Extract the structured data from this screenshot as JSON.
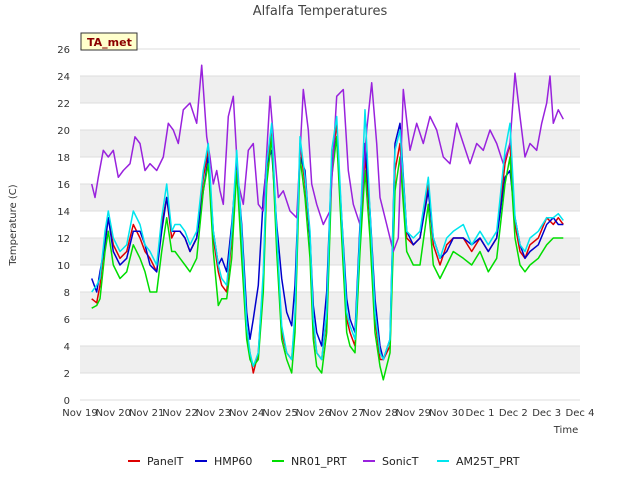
{
  "chart_data": {
    "type": "line",
    "title": "Alfalfa Temperatures",
    "xlabel": "Time",
    "ylabel": "Temperature (C)",
    "badge": "TA_met",
    "ylim": [
      0,
      26
    ],
    "yticks": [
      0,
      2,
      4,
      6,
      8,
      10,
      12,
      14,
      16,
      18,
      20,
      22,
      24,
      26
    ],
    "xlim": [
      0,
      15
    ],
    "xticks": [
      0,
      1,
      2,
      3,
      4,
      5,
      6,
      7,
      8,
      9,
      10,
      11,
      12,
      13,
      14,
      15
    ],
    "xtick_labels": [
      "Nov 19",
      "Nov 20",
      "Nov 21",
      "Nov 22",
      "Nov 23",
      "Nov 24",
      "Nov 25",
      "Nov 26",
      "Nov 27",
      "Nov 28",
      "Nov 29",
      "Nov 30",
      "Dec 1",
      "Dec 2",
      "Dec 3",
      "Dec 4"
    ],
    "grid": "horizontal bands",
    "legend_position": "bottom",
    "series": [
      {
        "name": "PanelT",
        "color": "#dd0000",
        "x": [
          0.35,
          0.5,
          0.6,
          0.75,
          0.85,
          1.0,
          1.2,
          1.4,
          1.6,
          1.8,
          1.95,
          2.1,
          2.3,
          2.45,
          2.6,
          2.75,
          2.85,
          3.0,
          3.15,
          3.3,
          3.5,
          3.7,
          3.85,
          4.0,
          4.15,
          4.25,
          4.4,
          4.55,
          4.7,
          4.85,
          5.0,
          5.1,
          5.2,
          5.35,
          5.5,
          5.6,
          5.75,
          5.9,
          6.05,
          6.2,
          6.35,
          6.45,
          6.6,
          6.75,
          6.9,
          7.0,
          7.1,
          7.25,
          7.4,
          7.55,
          7.7,
          7.85,
          8.0,
          8.1,
          8.25,
          8.4,
          8.55,
          8.7,
          8.85,
          9.0,
          9.1,
          9.3,
          9.45,
          9.6,
          9.8,
          10.0,
          10.2,
          10.45,
          10.6,
          10.8,
          11.0,
          11.2,
          11.5,
          11.75,
          12.0,
          12.25,
          12.5,
          12.75,
          12.9,
          13.05,
          13.2,
          13.35,
          13.5,
          13.75,
          14.0,
          14.2,
          14.35,
          14.5
        ],
        "y": [
          7.5,
          7.2,
          8.5,
          12.0,
          13.5,
          11.5,
          10.5,
          11.0,
          13.0,
          12.0,
          11.0,
          10.5,
          9.5,
          13.0,
          15.0,
          12.0,
          12.5,
          12.5,
          12.0,
          11.0,
          12.0,
          16.5,
          18.5,
          12.0,
          9.5,
          8.5,
          8.0,
          12.0,
          18.0,
          12.0,
          5.0,
          3.5,
          2.0,
          3.5,
          9.0,
          17.0,
          20.0,
          12.0,
          5.0,
          3.5,
          3.0,
          6.0,
          19.0,
          16.0,
          12.0,
          5.5,
          3.5,
          3.0,
          6.0,
          17.5,
          20.5,
          13.0,
          6.0,
          5.0,
          4.0,
          12.0,
          18.0,
          13.5,
          6.0,
          3.0,
          3.0,
          4.0,
          17.0,
          19.0,
          12.0,
          11.5,
          12.0,
          16.0,
          11.5,
          10.0,
          11.5,
          12.0,
          12.0,
          11.0,
          12.0,
          11.0,
          12.0,
          17.5,
          19.0,
          13.0,
          11.0,
          10.5,
          11.5,
          12.0,
          13.5,
          13.0,
          13.5,
          13.0
        ]
      },
      {
        "name": "HMP60",
        "color": "#0000cc",
        "x": [
          0.35,
          0.5,
          0.6,
          0.75,
          0.85,
          1.0,
          1.2,
          1.4,
          1.6,
          1.8,
          1.95,
          2.1,
          2.3,
          2.45,
          2.6,
          2.75,
          2.85,
          3.0,
          3.15,
          3.3,
          3.5,
          3.7,
          3.85,
          4.0,
          4.15,
          4.25,
          4.4,
          4.55,
          4.7,
          4.85,
          5.0,
          5.1,
          5.2,
          5.35,
          5.5,
          5.6,
          5.75,
          5.9,
          6.05,
          6.2,
          6.35,
          6.45,
          6.6,
          6.75,
          6.9,
          7.0,
          7.1,
          7.25,
          7.4,
          7.55,
          7.7,
          7.85,
          8.0,
          8.1,
          8.25,
          8.4,
          8.55,
          8.7,
          8.85,
          9.0,
          9.1,
          9.3,
          9.45,
          9.6,
          9.8,
          10.0,
          10.2,
          10.45,
          10.6,
          10.8,
          11.0,
          11.2,
          11.5,
          11.75,
          12.0,
          12.25,
          12.5,
          12.75,
          12.9,
          13.05,
          13.2,
          13.35,
          13.5,
          13.75,
          14.0,
          14.2,
          14.35,
          14.5
        ],
        "y": [
          9.0,
          8.0,
          9.5,
          11.5,
          13.5,
          11.0,
          10.0,
          10.5,
          12.5,
          12.5,
          11.5,
          10.0,
          9.5,
          12.5,
          15.0,
          12.5,
          12.5,
          12.5,
          12.0,
          11.0,
          12.0,
          15.5,
          18.0,
          12.5,
          10.0,
          10.5,
          9.5,
          13.0,
          17.5,
          13.0,
          6.5,
          4.5,
          6.0,
          8.5,
          15.0,
          17.5,
          18.5,
          13.0,
          9.0,
          6.5,
          5.5,
          8.5,
          18.0,
          17.0,
          12.0,
          7.0,
          5.0,
          4.0,
          8.0,
          17.5,
          19.5,
          13.5,
          7.5,
          6.0,
          5.0,
          13.0,
          19.0,
          14.0,
          7.5,
          4.0,
          3.0,
          4.5,
          19.0,
          20.5,
          12.5,
          11.5,
          12.0,
          15.5,
          12.0,
          10.5,
          11.0,
          12.0,
          12.0,
          11.5,
          12.0,
          11.0,
          12.0,
          16.5,
          17.0,
          13.5,
          11.5,
          10.5,
          11.0,
          11.5,
          13.0,
          13.5,
          13.0,
          13.0
        ]
      },
      {
        "name": "NR01_PRT",
        "color": "#00dd00",
        "x": [
          0.35,
          0.5,
          0.6,
          0.75,
          0.85,
          1.0,
          1.2,
          1.4,
          1.6,
          1.8,
          1.95,
          2.1,
          2.3,
          2.45,
          2.6,
          2.75,
          2.85,
          3.0,
          3.15,
          3.3,
          3.5,
          3.7,
          3.85,
          4.0,
          4.15,
          4.25,
          4.4,
          4.55,
          4.7,
          4.85,
          5.0,
          5.1,
          5.2,
          5.35,
          5.5,
          5.6,
          5.75,
          5.9,
          6.05,
          6.2,
          6.35,
          6.45,
          6.6,
          6.75,
          6.9,
          7.0,
          7.1,
          7.25,
          7.4,
          7.55,
          7.7,
          7.85,
          8.0,
          8.1,
          8.25,
          8.4,
          8.55,
          8.7,
          8.85,
          9.0,
          9.1,
          9.3,
          9.45,
          9.6,
          9.8,
          10.0,
          10.2,
          10.45,
          10.6,
          10.8,
          11.0,
          11.2,
          11.5,
          11.75,
          12.0,
          12.25,
          12.5,
          12.75,
          12.9,
          13.05,
          13.2,
          13.35,
          13.5,
          13.75,
          14.0,
          14.2,
          14.35,
          14.5
        ],
        "y": [
          6.8,
          7.0,
          7.5,
          11.0,
          12.5,
          10.0,
          9.0,
          9.5,
          11.5,
          10.5,
          9.5,
          8.0,
          8.0,
          11.0,
          13.5,
          11.0,
          11.0,
          10.5,
          10.0,
          9.5,
          10.5,
          15.5,
          17.5,
          11.0,
          7.0,
          7.5,
          7.5,
          10.5,
          17.0,
          10.5,
          4.5,
          3.0,
          2.5,
          3.0,
          8.0,
          16.0,
          19.5,
          11.0,
          4.5,
          3.0,
          2.0,
          5.0,
          18.0,
          15.0,
          10.5,
          4.5,
          2.5,
          2.0,
          5.0,
          16.5,
          19.5,
          12.0,
          5.0,
          4.0,
          3.5,
          11.0,
          17.0,
          12.0,
          5.0,
          2.5,
          1.5,
          3.5,
          15.5,
          18.0,
          11.0,
          10.0,
          10.0,
          14.5,
          10.0,
          9.0,
          10.0,
          11.0,
          10.5,
          10.0,
          11.0,
          9.5,
          10.5,
          16.0,
          18.0,
          12.0,
          10.0,
          9.5,
          10.0,
          10.5,
          11.5,
          12.0,
          12.0,
          12.0
        ]
      },
      {
        "name": "SonicT",
        "color": "#9922dd",
        "x": [
          0.35,
          0.45,
          0.55,
          0.7,
          0.85,
          1.0,
          1.15,
          1.3,
          1.5,
          1.65,
          1.8,
          1.95,
          2.1,
          2.3,
          2.5,
          2.65,
          2.8,
          2.95,
          3.1,
          3.3,
          3.5,
          3.65,
          3.8,
          3.9,
          4.0,
          4.1,
          4.2,
          4.3,
          4.45,
          4.6,
          4.75,
          4.9,
          5.05,
          5.2,
          5.35,
          5.5,
          5.7,
          5.85,
          5.95,
          6.1,
          6.3,
          6.5,
          6.7,
          6.85,
          6.95,
          7.1,
          7.3,
          7.5,
          7.7,
          7.9,
          8.05,
          8.2,
          8.4,
          8.6,
          8.75,
          8.9,
          9.0,
          9.2,
          9.4,
          9.55,
          9.7,
          9.9,
          10.1,
          10.3,
          10.5,
          10.7,
          10.9,
          11.1,
          11.3,
          11.5,
          11.7,
          11.9,
          12.1,
          12.3,
          12.5,
          12.7,
          12.9,
          13.05,
          13.2,
          13.35,
          13.5,
          13.7,
          13.85,
          14.0,
          14.1,
          14.2,
          14.35,
          14.5
        ],
        "y": [
          16.0,
          15.0,
          16.5,
          18.5,
          18.0,
          18.5,
          16.5,
          17.0,
          17.5,
          19.5,
          19.0,
          17.0,
          17.5,
          17.0,
          18.0,
          20.5,
          20.0,
          19.0,
          21.5,
          22.0,
          20.5,
          24.8,
          19.5,
          18.0,
          16.0,
          17.0,
          15.5,
          14.5,
          21.0,
          22.5,
          16.0,
          14.5,
          18.5,
          19.0,
          14.5,
          14.0,
          22.5,
          18.0,
          15.0,
          15.5,
          14.0,
          13.5,
          23.0,
          20.0,
          16.0,
          14.5,
          13.0,
          14.0,
          22.5,
          23.0,
          17.0,
          14.5,
          13.0,
          20.0,
          23.5,
          19.0,
          15.0,
          13.0,
          11.0,
          12.0,
          23.0,
          18.5,
          20.5,
          19.0,
          21.0,
          20.0,
          18.0,
          17.5,
          20.5,
          19.0,
          17.5,
          19.0,
          18.5,
          20.0,
          19.0,
          17.5,
          19.0,
          24.2,
          21.0,
          18.0,
          19.0,
          18.5,
          20.5,
          22.0,
          24.0,
          20.5,
          21.5,
          20.8
        ]
      },
      {
        "name": "AM25T_PRT",
        "color": "#00e5ee",
        "x": [
          0.35,
          0.5,
          0.6,
          0.75,
          0.85,
          1.0,
          1.2,
          1.4,
          1.6,
          1.8,
          1.95,
          2.1,
          2.3,
          2.45,
          2.6,
          2.75,
          2.85,
          3.0,
          3.15,
          3.3,
          3.5,
          3.7,
          3.85,
          4.0,
          4.15,
          4.25,
          4.4,
          4.55,
          4.7,
          4.85,
          5.0,
          5.1,
          5.2,
          5.35,
          5.5,
          5.6,
          5.75,
          5.9,
          6.05,
          6.2,
          6.35,
          6.45,
          6.6,
          6.75,
          6.9,
          7.0,
          7.1,
          7.25,
          7.4,
          7.55,
          7.7,
          7.85,
          8.0,
          8.1,
          8.25,
          8.4,
          8.55,
          8.7,
          8.85,
          9.0,
          9.1,
          9.3,
          9.45,
          9.6,
          9.8,
          10.0,
          10.2,
          10.45,
          10.6,
          10.8,
          11.0,
          11.2,
          11.5,
          11.75,
          12.0,
          12.25,
          12.5,
          12.75,
          12.9,
          13.05,
          13.2,
          13.35,
          13.5,
          13.75,
          14.0,
          14.2,
          14.35,
          14.5
        ],
        "y": [
          8.0,
          8.5,
          9.0,
          12.5,
          14.0,
          12.0,
          11.0,
          11.5,
          14.0,
          13.0,
          11.5,
          11.0,
          10.0,
          13.5,
          16.0,
          12.5,
          13.0,
          13.0,
          12.5,
          11.5,
          12.5,
          17.0,
          19.0,
          12.5,
          10.0,
          9.0,
          8.5,
          12.5,
          18.5,
          12.5,
          5.5,
          3.5,
          2.5,
          3.5,
          9.5,
          17.5,
          20.5,
          12.5,
          5.5,
          3.5,
          3.0,
          6.5,
          19.5,
          16.5,
          12.5,
          6.0,
          3.5,
          3.0,
          6.5,
          18.5,
          21.0,
          13.5,
          6.5,
          5.5,
          4.5,
          12.5,
          21.5,
          14.0,
          6.5,
          3.5,
          3.0,
          4.5,
          18.5,
          20.0,
          12.5,
          12.0,
          12.5,
          16.5,
          12.0,
          10.5,
          12.0,
          12.5,
          13.0,
          11.5,
          12.5,
          11.5,
          12.5,
          18.5,
          20.5,
          13.5,
          11.5,
          11.0,
          12.0,
          12.5,
          13.5,
          13.5,
          13.8,
          13.3
        ]
      }
    ]
  }
}
